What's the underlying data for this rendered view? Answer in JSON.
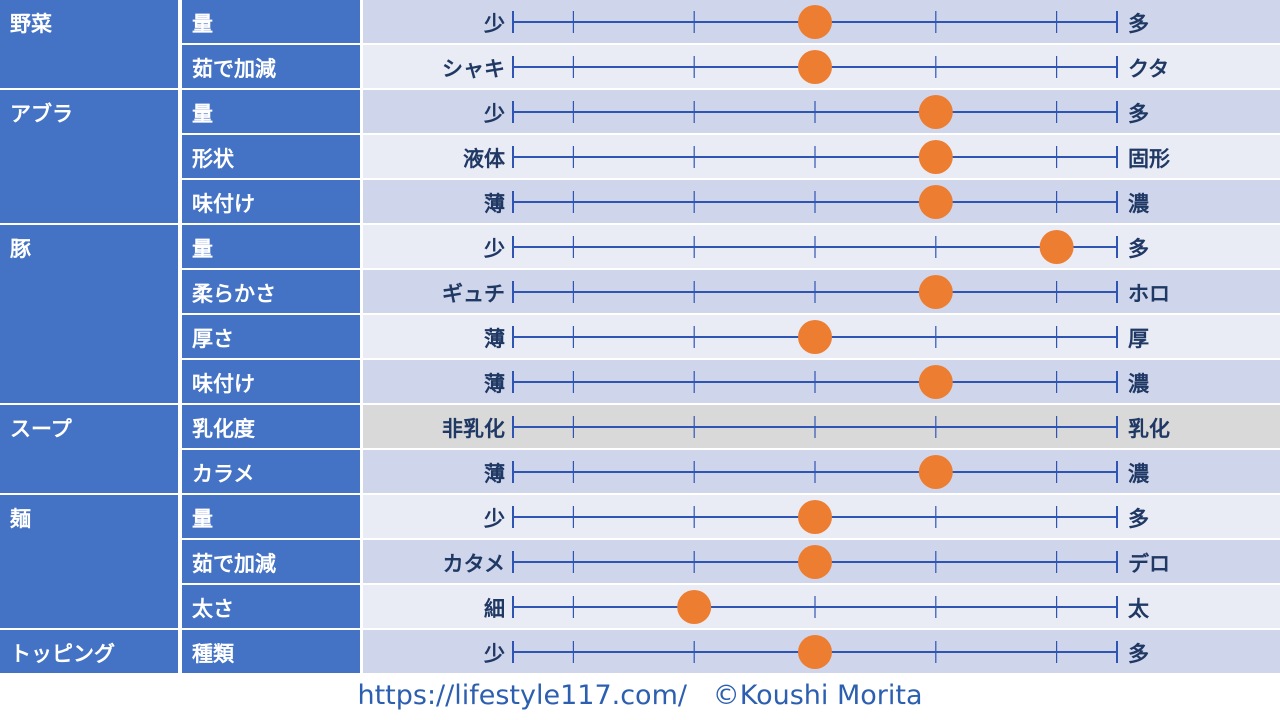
{
  "chart_data": {
    "type": "table",
    "scale_steps": 5,
    "colors": {
      "category_bg": "#4472c4",
      "row_dark": "#cfd5ea",
      "row_light": "#e9ebf5",
      "row_disabled": "#d9d9d9",
      "dot": "#ed7d31",
      "line": "#2f55b4",
      "label_text": "#1f3864",
      "header_text": "#ffffff"
    },
    "groups": [
      {
        "category": "野菜",
        "rows": [
          {
            "item": "量",
            "left": "少",
            "right": "多",
            "value": 3
          },
          {
            "item": "茹で加減",
            "left": "シャキ",
            "right": "クタ",
            "value": 3
          }
        ]
      },
      {
        "category": "アブラ",
        "rows": [
          {
            "item": "量",
            "left": "少",
            "right": "多",
            "value": 4
          },
          {
            "item": "形状",
            "left": "液体",
            "right": "固形",
            "value": 4
          },
          {
            "item": "味付け",
            "left": "薄",
            "right": "濃",
            "value": 4
          }
        ]
      },
      {
        "category": "豚",
        "rows": [
          {
            "item": "量",
            "left": "少",
            "right": "多",
            "value": 5
          },
          {
            "item": "柔らかさ",
            "left": "ギュチ",
            "right": "ホロ",
            "value": 4
          },
          {
            "item": "厚さ",
            "left": "薄",
            "right": "厚",
            "value": 3
          },
          {
            "item": "味付け",
            "left": "薄",
            "right": "濃",
            "value": 4
          }
        ]
      },
      {
        "category": "スープ",
        "rows": [
          {
            "item": "乳化度",
            "left": "非乳化",
            "right": "乳化",
            "value": null
          },
          {
            "item": "カラメ",
            "left": "薄",
            "right": "濃",
            "value": 4
          }
        ]
      },
      {
        "category": "麺",
        "rows": [
          {
            "item": "量",
            "left": "少",
            "right": "多",
            "value": 3
          },
          {
            "item": "茹で加減",
            "left": "カタメ",
            "right": "デロ",
            "value": 3
          },
          {
            "item": "太さ",
            "left": "細",
            "right": "太",
            "value": 2
          }
        ]
      },
      {
        "category": "トッピング",
        "rows": [
          {
            "item": "種類",
            "left": "少",
            "right": "多",
            "value": 3
          }
        ]
      }
    ]
  },
  "footer": {
    "url": "https://lifestyle117.com/",
    "copyright": "©Koushi Morita"
  }
}
